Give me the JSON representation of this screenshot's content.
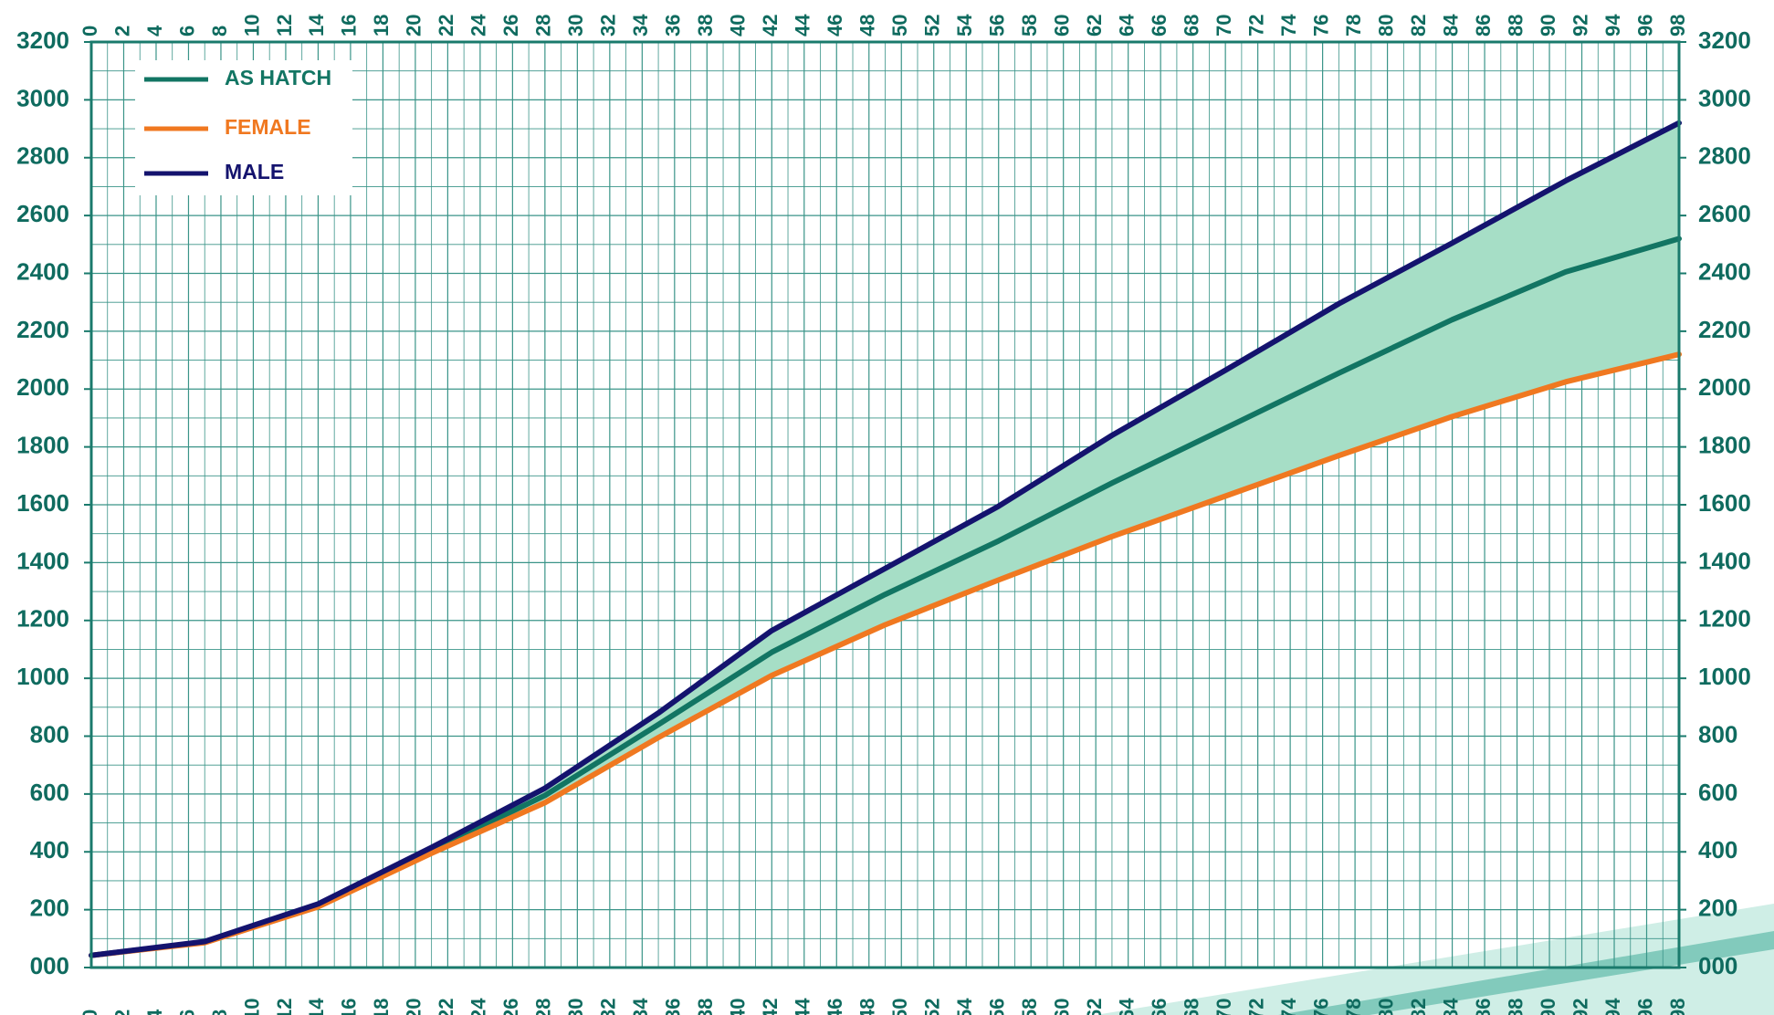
{
  "chart_data": {
    "type": "line",
    "x": [
      0,
      7,
      14,
      21,
      28,
      35,
      42,
      49,
      56,
      63,
      70,
      77,
      84,
      91,
      98
    ],
    "series": [
      {
        "name": "AS HATCH",
        "color": "#127563",
        "values": [
          42,
          88,
          215,
          405,
          595,
          840,
          1090,
          1290,
          1475,
          1675,
          1865,
          2055,
          2240,
          2405,
          2520
        ]
      },
      {
        "name": "FEMALE",
        "color": "#f07820",
        "values": [
          42,
          86,
          210,
          395,
          570,
          795,
          1010,
          1185,
          1340,
          1490,
          1630,
          1770,
          1905,
          2025,
          2120
        ]
      },
      {
        "name": "MALE",
        "color": "#14136e",
        "values": [
          42,
          90,
          220,
          415,
          620,
          880,
          1165,
          1380,
          1595,
          1840,
          2065,
          2295,
          2505,
          2720,
          2920
        ]
      }
    ],
    "fill_between": {
      "upper": "MALE",
      "lower": "FEMALE",
      "color": "#a6dec6"
    },
    "xlim": [
      0,
      98
    ],
    "xticks": [
      0,
      2,
      4,
      6,
      8,
      10,
      12,
      14,
      16,
      18,
      20,
      22,
      24,
      26,
      28,
      30,
      32,
      34,
      36,
      38,
      40,
      42,
      44,
      46,
      48,
      50,
      52,
      54,
      56,
      58,
      60,
      62,
      64,
      66,
      68,
      70,
      72,
      74,
      76,
      78,
      80,
      82,
      84,
      86,
      88,
      90,
      92,
      94,
      96,
      98
    ],
    "ylim": [
      0,
      3200
    ],
    "yticks": [
      {
        "value": 0,
        "label": "000"
      },
      200,
      400,
      600,
      800,
      1000,
      1200,
      1400,
      1600,
      1800,
      2000,
      2200,
      2400,
      2600,
      2800,
      3000,
      3200
    ],
    "grid": true,
    "minor_grid": true,
    "legend": "upper left"
  }
}
